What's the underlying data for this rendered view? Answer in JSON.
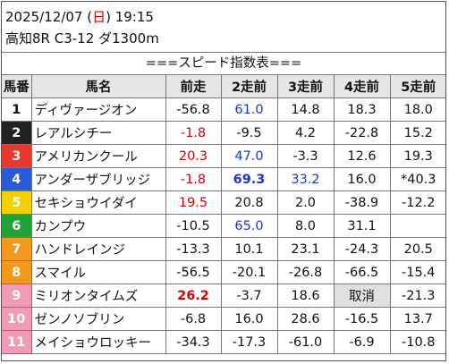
{
  "header": {
    "date_prefix": "2025/12/07 (",
    "day_of_week": "日",
    "date_suffix": ") 19:15",
    "race_info": "高知8R C3-12 ダ1300m"
  },
  "title": "===スピード指数表===",
  "columns": [
    "馬番",
    "馬名",
    "前走",
    "2走前",
    "3走前",
    "4走前",
    "5走前"
  ],
  "rows": [
    {
      "num": "1",
      "bg": "#ffffff",
      "fg": "#111111",
      "name": "ディヴァージオン",
      "v": [
        "-56.8",
        "61.0",
        "14.8",
        "18.3",
        "18.0"
      ],
      "s": [
        "",
        "blue",
        "",
        "",
        ""
      ]
    },
    {
      "num": "2",
      "bg": "#222222",
      "fg": "#ffffff",
      "name": "レアルシチー",
      "v": [
        "-1.8",
        "-9.5",
        "4.2",
        "-22.8",
        "15.2"
      ],
      "s": [
        "red",
        "",
        "",
        "",
        ""
      ]
    },
    {
      "num": "3",
      "bg": "#e8372c",
      "fg": "#ffffff",
      "name": "アメリカンクール",
      "v": [
        "20.3",
        "47.0",
        "-3.3",
        "12.6",
        "19.3"
      ],
      "s": [
        "red",
        "blue",
        "",
        "",
        ""
      ]
    },
    {
      "num": "4",
      "bg": "#2a5bd7",
      "fg": "#ffffff",
      "name": "アンダーザブリッジ",
      "v": [
        "-1.8",
        "69.3",
        "33.2",
        "16.0",
        "*40.3"
      ],
      "s": [
        "red",
        "blue bold",
        "blue",
        "",
        ""
      ]
    },
    {
      "num": "5",
      "bg": "#f5d000",
      "fg": "#ffffff",
      "name": "セキショウイダイ",
      "v": [
        "19.5",
        "20.8",
        "2.0",
        "-38.9",
        "-12.2"
      ],
      "s": [
        "red",
        "",
        "",
        "",
        ""
      ]
    },
    {
      "num": "6",
      "bg": "#22a33a",
      "fg": "#ffffff",
      "name": "カンプウ",
      "v": [
        "-10.5",
        "65.0",
        "8.0",
        "31.1"
      ],
      "s": [
        "",
        "blue",
        "",
        "",
        ""
      ]
    },
    {
      "num": "7",
      "bg": "#f39a1e",
      "fg": "#ffffff",
      "name": "ハンドレインジ",
      "v": [
        "-13.3",
        "10.1",
        "23.1",
        "-24.3",
        "20.5"
      ],
      "s": [
        "",
        "",
        "",
        "",
        ""
      ]
    },
    {
      "num": "8",
      "bg": "#f39a1e",
      "fg": "#ffffff",
      "name": "スマイル",
      "v": [
        "-56.5",
        "-20.1",
        "-26.8",
        "-66.5",
        "-15.4"
      ],
      "s": [
        "",
        "",
        "",
        "",
        ""
      ]
    },
    {
      "num": "9",
      "bg": "#f29bb4",
      "fg": "#ffffff",
      "name": "ミリオンタイムズ",
      "v": [
        "26.2",
        "-3.7",
        "18.6",
        "取消",
        "-21.3"
      ],
      "s": [
        "red bold",
        "",
        "",
        "void",
        ""
      ]
    },
    {
      "num": "10",
      "bg": "#f29bb4",
      "fg": "#ffffff",
      "name": "ゼンノソブリン",
      "v": [
        "-6.8",
        "16.0",
        "28.6",
        "-16.5",
        "13.7"
      ],
      "s": [
        "",
        "",
        "",
        "",
        ""
      ]
    },
    {
      "num": "11",
      "bg": "#f29bb4",
      "fg": "#ffffff",
      "name": "メイショウロッキー",
      "v": [
        "-34.3",
        "-17.3",
        "-61.0",
        "-6.9",
        "-10.8"
      ],
      "s": [
        "",
        "",
        "",
        "",
        ""
      ]
    }
  ]
}
